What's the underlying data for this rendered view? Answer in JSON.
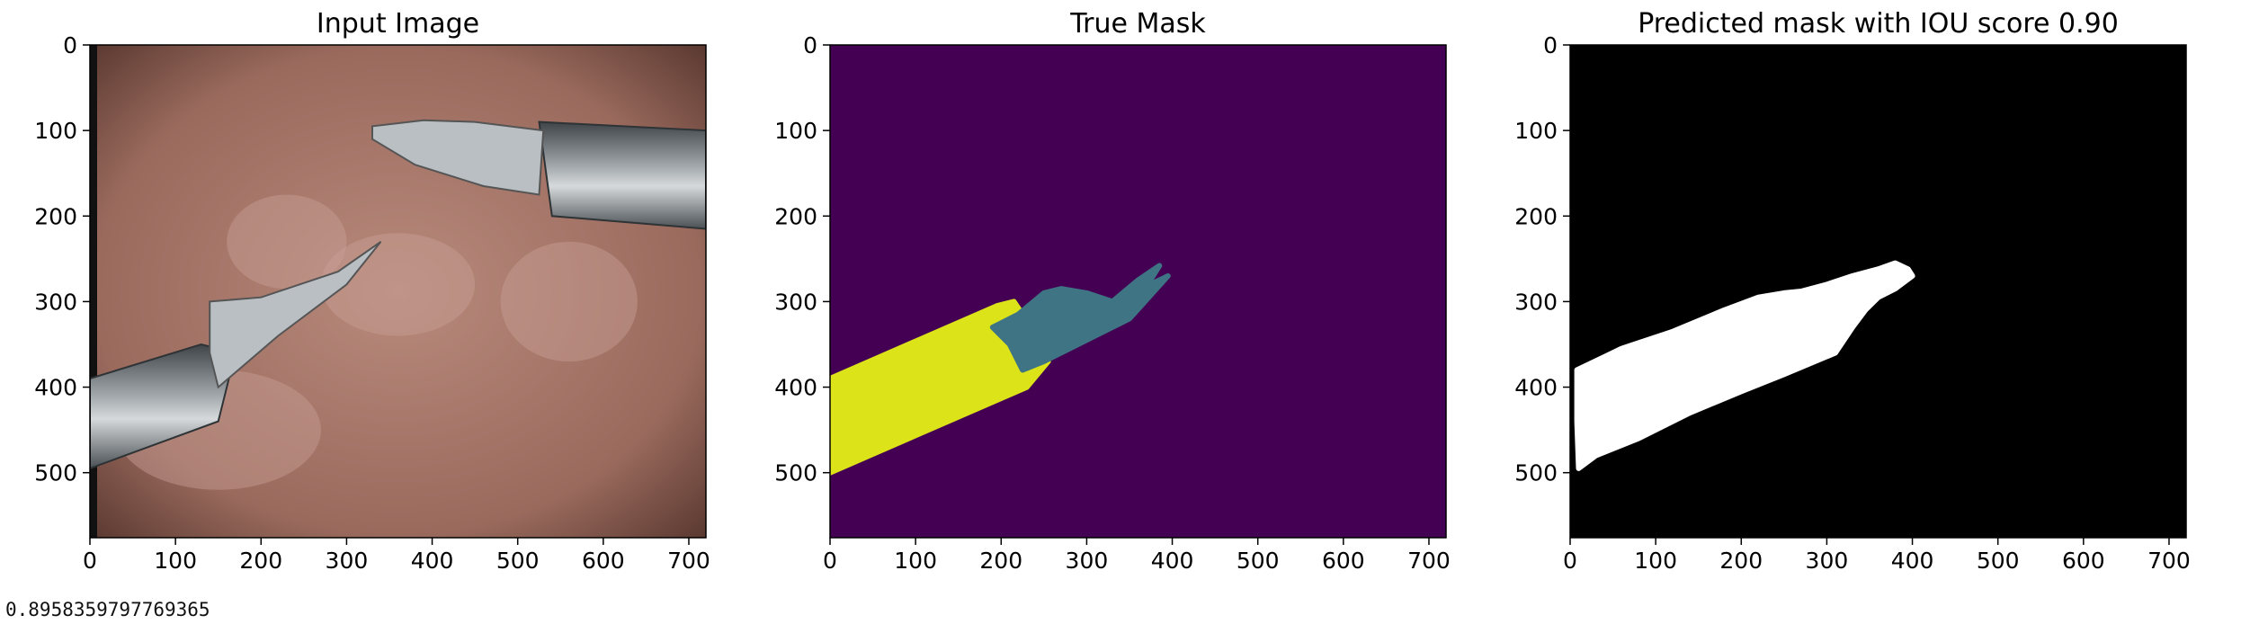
{
  "chart_data": [
    {
      "type": "image",
      "title": "Input Image",
      "xlim": [
        0,
        720
      ],
      "ylim": [
        576,
        0
      ],
      "xticks": [
        0,
        100,
        200,
        300,
        400,
        500,
        600,
        700
      ],
      "yticks": [
        0,
        100,
        200,
        300,
        400,
        500
      ],
      "instruments": [
        {
          "name": "upper grasper",
          "shaft": [
            [
              720,
              100
            ],
            [
              720,
              215
            ],
            [
              540,
              200
            ],
            [
              525,
              90
            ]
          ],
          "jaw": [
            [
              530,
              100
            ],
            [
              525,
              175
            ],
            [
              460,
              165
            ],
            [
              380,
              140
            ],
            [
              330,
              110
            ],
            [
              330,
              95
            ],
            [
              390,
              88
            ],
            [
              450,
              90
            ]
          ]
        },
        {
          "name": "lower grasper",
          "shaft": [
            [
              0,
              390
            ],
            [
              0,
              495
            ],
            [
              150,
              440
            ],
            [
              170,
              360
            ],
            [
              130,
              350
            ]
          ],
          "jaw": [
            [
              140,
              300
            ],
            [
              200,
              295
            ],
            [
              290,
              265
            ],
            [
              340,
              230
            ],
            [
              300,
              280
            ],
            [
              220,
              340
            ],
            [
              150,
              400
            ],
            [
              140,
              360
            ]
          ]
        }
      ]
    },
    {
      "type": "segmentation-mask",
      "title": "True Mask",
      "xlim": [
        0,
        720
      ],
      "ylim": [
        576,
        0
      ],
      "xticks": [
        0,
        100,
        200,
        300,
        400,
        500,
        600,
        700
      ],
      "yticks": [
        0,
        100,
        200,
        300,
        400,
        500
      ],
      "colors": {
        "background": "#440154",
        "shaft": "#DCE319",
        "jaws": "#3E7484"
      },
      "regions": [
        {
          "label": "shaft",
          "polygon": [
            [
              0,
              390
            ],
            [
              195,
              305
            ],
            [
              215,
              300
            ],
            [
              235,
              330
            ],
            [
              255,
              370
            ],
            [
              230,
              400
            ],
            [
              0,
              500
            ]
          ]
        },
        {
          "label": "jaws",
          "polygon": [
            [
              190,
              330
            ],
            [
              220,
              315
            ],
            [
              250,
              290
            ],
            [
              270,
              285
            ],
            [
              300,
              290
            ],
            [
              330,
              300
            ],
            [
              360,
              275
            ],
            [
              385,
              258
            ],
            [
              370,
              282
            ],
            [
              395,
              270
            ],
            [
              350,
              320
            ],
            [
              300,
              345
            ],
            [
              250,
              370
            ],
            [
              225,
              380
            ],
            [
              210,
              350
            ]
          ]
        }
      ]
    },
    {
      "type": "segmentation-mask",
      "title": "Predicted mask with IOU score 0.90",
      "xlim": [
        0,
        720
      ],
      "ylim": [
        576,
        0
      ],
      "xticks": [
        0,
        100,
        200,
        300,
        400,
        500,
        600,
        700
      ],
      "yticks": [
        0,
        100,
        200,
        300,
        400,
        500
      ],
      "colors": {
        "background": "#000000",
        "foreground": "#FFFFFF"
      },
      "iou": 0.9,
      "regions": [
        {
          "label": "predicted",
          "polygon": [
            [
              8,
              380
            ],
            [
              60,
              355
            ],
            [
              120,
              335
            ],
            [
              180,
              310
            ],
            [
              220,
              295
            ],
            [
              250,
              290
            ],
            [
              270,
              288
            ],
            [
              300,
              280
            ],
            [
              330,
              270
            ],
            [
              360,
              262
            ],
            [
              380,
              255
            ],
            [
              395,
              262
            ],
            [
              400,
              270
            ],
            [
              380,
              285
            ],
            [
              360,
              295
            ],
            [
              345,
              310
            ],
            [
              330,
              330
            ],
            [
              310,
              360
            ],
            [
              250,
              385
            ],
            [
              200,
              405
            ],
            [
              140,
              430
            ],
            [
              80,
              460
            ],
            [
              30,
              480
            ],
            [
              10,
              495
            ],
            [
              8,
              440
            ]
          ]
        }
      ]
    }
  ],
  "console_output": "0.8958359797769365"
}
